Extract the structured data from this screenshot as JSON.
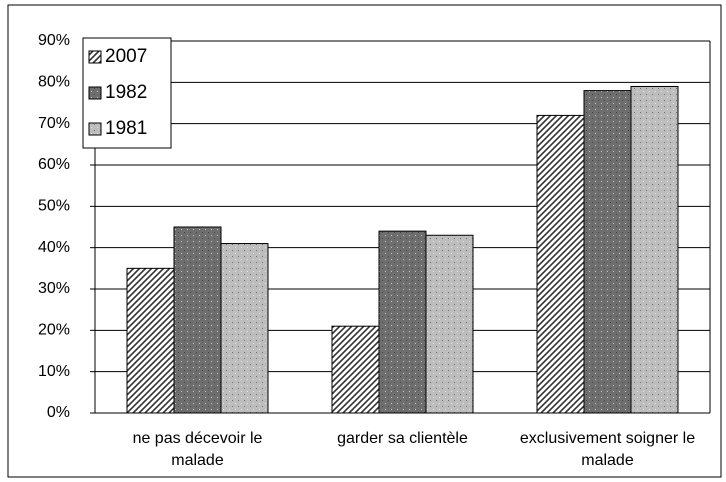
{
  "chart_data": {
    "type": "bar",
    "categories": [
      "ne pas décevoir le malade",
      "garder sa clientèle",
      "exclusivement soigner le malade"
    ],
    "series": [
      {
        "name": "2007",
        "color": "#333333",
        "values": [
          35,
          21,
          72
        ]
      },
      {
        "name": "1982",
        "color": "#6e6e6e",
        "values": [
          45,
          44,
          78
        ]
      },
      {
        "name": "1981",
        "color": "#bdbdbd",
        "values": [
          41,
          43,
          79
        ]
      }
    ],
    "ylim": [
      0,
      90
    ],
    "yticks": [
      {
        "value": 0,
        "label": "0%"
      },
      {
        "value": 10,
        "label": "10%"
      },
      {
        "value": 20,
        "label": "20%"
      },
      {
        "value": 30,
        "label": "30%"
      },
      {
        "value": 40,
        "label": "40%"
      },
      {
        "value": 50,
        "label": "50%"
      },
      {
        "value": 60,
        "label": "60%"
      },
      {
        "value": 70,
        "label": "70%"
      },
      {
        "value": 80,
        "label": "80%"
      },
      {
        "value": 90,
        "label": "90%"
      }
    ],
    "grid": true,
    "legend": "top-left"
  }
}
